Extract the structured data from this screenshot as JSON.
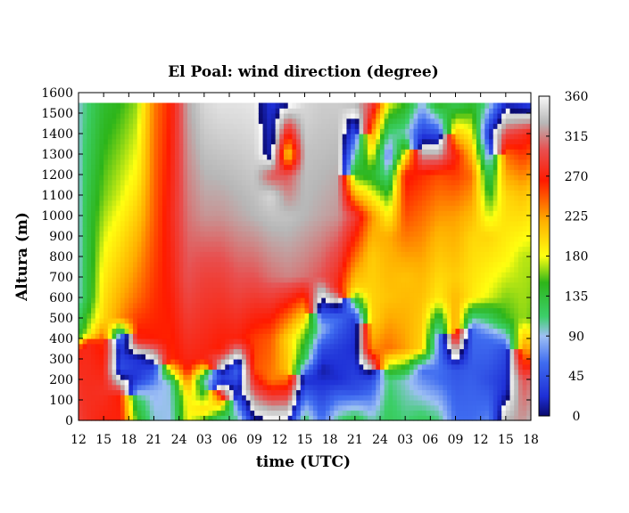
{
  "chart_data": {
    "type": "heatmap",
    "title": "El Poal: wind direction (degree)",
    "xlabel": "time (UTC)",
    "ylabel": "Altura (m)",
    "x_ticks": [
      "12",
      "15",
      "18",
      "21",
      "24",
      "03",
      "06",
      "09",
      "12",
      "15",
      "18",
      "21",
      "24",
      "03",
      "06",
      "09",
      "12",
      "15",
      "18"
    ],
    "x_range_hours": [
      0,
      54
    ],
    "y_ticks": [
      0,
      100,
      200,
      300,
      400,
      500,
      600,
      700,
      800,
      900,
      1000,
      1100,
      1200,
      1300,
      1400,
      1500,
      1600
    ],
    "ylim": [
      0,
      1600
    ],
    "data_top_altitude": 1550,
    "colorbar": {
      "ticks": [
        0,
        45,
        90,
        135,
        180,
        225,
        270,
        315,
        360
      ],
      "range": [
        0,
        360
      ],
      "stops": [
        {
          "value": 0,
          "color": "#0a0a6e"
        },
        {
          "value": 22,
          "color": "#1e2fd6"
        },
        {
          "value": 60,
          "color": "#3f6cf0"
        },
        {
          "value": 90,
          "color": "#9ec0f4"
        },
        {
          "value": 112,
          "color": "#3ccf6a"
        },
        {
          "value": 150,
          "color": "#2db51a"
        },
        {
          "value": 180,
          "color": "#ffff10"
        },
        {
          "value": 220,
          "color": "#ffae00"
        },
        {
          "value": 265,
          "color": "#ff1a00"
        },
        {
          "value": 300,
          "color": "#e85050"
        },
        {
          "value": 330,
          "color": "#b7b7b7"
        },
        {
          "value": 360,
          "color": "#f8f8f8"
        }
      ]
    },
    "anchors": [
      {
        "t": 0,
        "levels": [
          [
            0,
            290
          ],
          [
            350,
            272
          ],
          [
            400,
            150
          ],
          [
            480,
            120
          ],
          [
            600,
            95
          ],
          [
            1000,
            90
          ],
          [
            1550,
            95
          ]
        ]
      },
      {
        "t": 1,
        "levels": [
          [
            0,
            280
          ],
          [
            380,
            275
          ],
          [
            420,
            170
          ],
          [
            600,
            130
          ],
          [
            1000,
            130
          ],
          [
            1550,
            110
          ]
        ]
      },
      {
        "t": 3,
        "levels": [
          [
            0,
            270
          ],
          [
            150,
            280
          ],
          [
            380,
            260
          ],
          [
            500,
            200
          ],
          [
            750,
            185
          ],
          [
            1100,
            160
          ],
          [
            1550,
            140
          ]
        ]
      },
      {
        "t": 5,
        "levels": [
          [
            0,
            270
          ],
          [
            120,
            265
          ],
          [
            250,
            40
          ],
          [
            350,
            30
          ],
          [
            420,
            80
          ],
          [
            500,
            230
          ],
          [
            700,
            210
          ],
          [
            1100,
            175
          ],
          [
            1550,
            150
          ]
        ]
      },
      {
        "t": 7,
        "levels": [
          [
            0,
            150
          ],
          [
            100,
            120
          ],
          [
            200,
            30
          ],
          [
            300,
            25
          ],
          [
            400,
            270
          ],
          [
            600,
            240
          ],
          [
            900,
            215
          ],
          [
            1200,
            185
          ],
          [
            1550,
            165
          ]
        ]
      },
      {
        "t": 9,
        "levels": [
          [
            0,
            95
          ],
          [
            150,
            85
          ],
          [
            250,
            40
          ],
          [
            400,
            265
          ],
          [
            700,
            255
          ],
          [
            1000,
            245
          ],
          [
            1550,
            235
          ]
        ]
      },
      {
        "t": 11,
        "levels": [
          [
            0,
            90
          ],
          [
            180,
            95
          ],
          [
            300,
            260
          ],
          [
            700,
            270
          ],
          [
            1000,
            275
          ],
          [
            1550,
            265
          ]
        ]
      },
      {
        "t": 13,
        "levels": [
          [
            0,
            180
          ],
          [
            120,
            190
          ],
          [
            250,
            270
          ],
          [
            700,
            300
          ],
          [
            1000,
            310
          ],
          [
            1550,
            325
          ]
        ]
      },
      {
        "t": 15,
        "levels": [
          [
            0,
            150
          ],
          [
            50,
            200
          ],
          [
            200,
            100
          ],
          [
            300,
            270
          ],
          [
            700,
            290
          ],
          [
            1000,
            320
          ],
          [
            1550,
            345
          ]
        ]
      },
      {
        "t": 17,
        "levels": [
          [
            0,
            100
          ],
          [
            100,
            230
          ],
          [
            200,
            40
          ],
          [
            350,
            265
          ],
          [
            700,
            290
          ],
          [
            1000,
            320
          ],
          [
            1550,
            350
          ]
        ]
      },
      {
        "t": 19,
        "levels": [
          [
            0,
            110
          ],
          [
            150,
            20
          ],
          [
            250,
            60
          ],
          [
            400,
            270
          ],
          [
            700,
            300
          ],
          [
            1000,
            325
          ],
          [
            1550,
            350
          ]
        ]
      },
      {
        "t": 21,
        "levels": [
          [
            0,
            10
          ],
          [
            250,
            250
          ],
          [
            400,
            255
          ],
          [
            700,
            300
          ],
          [
            1000,
            330
          ],
          [
            1550,
            352
          ]
        ]
      },
      {
        "t": 23,
        "levels": [
          [
            0,
            5
          ],
          [
            200,
            235
          ],
          [
            400,
            245
          ],
          [
            700,
            310
          ],
          [
            1000,
            335
          ],
          [
            1100,
            345
          ],
          [
            1200,
            300
          ],
          [
            1300,
            15
          ],
          [
            1550,
            25
          ]
        ]
      },
      {
        "t": 25,
        "levels": [
          [
            0,
            5
          ],
          [
            250,
            210
          ],
          [
            400,
            200
          ],
          [
            700,
            315
          ],
          [
            1000,
            335
          ],
          [
            1200,
            300
          ],
          [
            1300,
            195
          ],
          [
            1550,
            10
          ]
        ]
      },
      {
        "t": 27,
        "levels": [
          [
            0,
            120
          ],
          [
            200,
            20
          ],
          [
            300,
            120
          ],
          [
            450,
            170
          ],
          [
            700,
            310
          ],
          [
            1000,
            330
          ],
          [
            1300,
            335
          ],
          [
            1550,
            345
          ]
        ]
      },
      {
        "t": 29,
        "levels": [
          [
            0,
            60
          ],
          [
            250,
            10
          ],
          [
            350,
            40
          ],
          [
            450,
            90
          ],
          [
            700,
            300
          ],
          [
            1000,
            325
          ],
          [
            1550,
            340
          ]
        ]
      },
      {
        "t": 31,
        "levels": [
          [
            0,
            110
          ],
          [
            200,
            20
          ],
          [
            350,
            30
          ],
          [
            500,
            60
          ],
          [
            650,
            270
          ],
          [
            1000,
            320
          ],
          [
            1550,
            340
          ]
        ]
      },
      {
        "t": 33,
        "levels": [
          [
            0,
            130
          ],
          [
            150,
            40
          ],
          [
            350,
            20
          ],
          [
            500,
            30
          ],
          [
            650,
            200
          ],
          [
            800,
            240
          ],
          [
            1000,
            290
          ],
          [
            1200,
            150
          ],
          [
            1550,
            330
          ]
        ]
      },
      {
        "t": 35,
        "levels": [
          [
            0,
            100
          ],
          [
            200,
            40
          ],
          [
            350,
            230
          ],
          [
            500,
            200
          ],
          [
            800,
            205
          ],
          [
            1000,
            230
          ],
          [
            1200,
            140
          ],
          [
            1550,
            300
          ]
        ]
      },
      {
        "t": 37,
        "levels": [
          [
            0,
            120
          ],
          [
            200,
            110
          ],
          [
            350,
            240
          ],
          [
            600,
            210
          ],
          [
            900,
            220
          ],
          [
            1100,
            150
          ],
          [
            1300,
            60
          ],
          [
            1550,
            180
          ]
        ]
      },
      {
        "t": 39,
        "levels": [
          [
            0,
            110
          ],
          [
            200,
            95
          ],
          [
            350,
            225
          ],
          [
            700,
            210
          ],
          [
            1000,
            250
          ],
          [
            1200,
            270
          ],
          [
            1400,
            100
          ],
          [
            1550,
            150
          ]
        ]
      },
      {
        "t": 41,
        "levels": [
          [
            0,
            120
          ],
          [
            250,
            60
          ],
          [
            350,
            200
          ],
          [
            700,
            215
          ],
          [
            1000,
            240
          ],
          [
            1200,
            260
          ],
          [
            1400,
            30
          ],
          [
            1550,
            90
          ]
        ]
      },
      {
        "t": 43,
        "levels": [
          [
            0,
            110
          ],
          [
            200,
            60
          ],
          [
            400,
            70
          ],
          [
            600,
            190
          ],
          [
            900,
            215
          ],
          [
            1200,
            250
          ],
          [
            1400,
            40
          ],
          [
            1550,
            150
          ]
        ]
      },
      {
        "t": 45,
        "levels": [
          [
            0,
            60
          ],
          [
            250,
            45
          ],
          [
            450,
            230
          ],
          [
            700,
            205
          ],
          [
            1000,
            225
          ],
          [
            1300,
            270
          ],
          [
            1550,
            120
          ]
        ]
      },
      {
        "t": 47,
        "levels": [
          [
            0,
            60
          ],
          [
            250,
            50
          ],
          [
            450,
            60
          ],
          [
            600,
            190
          ],
          [
            900,
            200
          ],
          [
            1200,
            240
          ],
          [
            1550,
            140
          ]
        ]
      },
      {
        "t": 49,
        "levels": [
          [
            0,
            70
          ],
          [
            200,
            40
          ],
          [
            400,
            60
          ],
          [
            600,
            175
          ],
          [
            900,
            200
          ],
          [
            1200,
            120
          ],
          [
            1400,
            20
          ],
          [
            1550,
            100
          ]
        ]
      },
      {
        "t": 51,
        "levels": [
          [
            0,
            330
          ],
          [
            150,
            20
          ],
          [
            350,
            40
          ],
          [
            500,
            150
          ],
          [
            800,
            185
          ],
          [
            1100,
            200
          ],
          [
            1300,
            240
          ],
          [
            1550,
            20
          ]
        ]
      },
      {
        "t": 53,
        "levels": [
          [
            0,
            320
          ],
          [
            200,
            300
          ],
          [
            350,
            230
          ],
          [
            500,
            165
          ],
          [
            800,
            170
          ],
          [
            1100,
            210
          ],
          [
            1400,
            280
          ],
          [
            1550,
            30
          ]
        ]
      },
      {
        "t": 54,
        "levels": [
          [
            0,
            330
          ],
          [
            200,
            310
          ],
          [
            350,
            220
          ],
          [
            500,
            160
          ],
          [
            800,
            170
          ],
          [
            1100,
            200
          ],
          [
            1400,
            270
          ],
          [
            1550,
            40
          ]
        ]
      }
    ]
  }
}
